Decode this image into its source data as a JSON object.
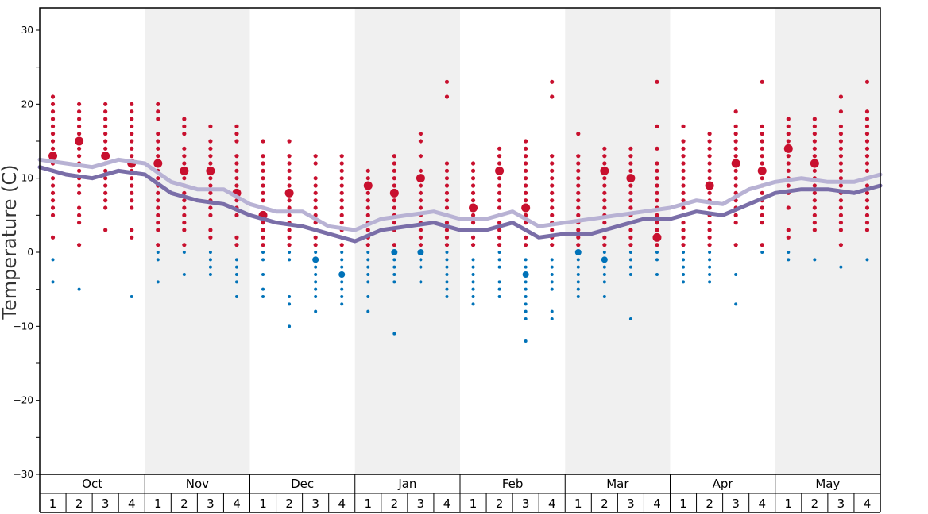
{
  "chart_data": {
    "type": "scatter",
    "ylabel": "Temperature (C)",
    "ylim": [
      -30,
      33
    ],
    "yticks": [
      30,
      20,
      10,
      0,
      -10,
      -20,
      -30
    ],
    "months": [
      "Oct",
      "Nov",
      "Dec",
      "Jan",
      "Feb",
      "Mar",
      "Apr",
      "May"
    ],
    "weeks": [
      "1",
      "2",
      "3",
      "4"
    ],
    "shaded_months": [
      "Nov",
      "Jan",
      "Mar",
      "May"
    ],
    "colors": {
      "warm": "#c8102e",
      "cold": "#0072b8",
      "line_upper": "#b8b2d4",
      "line_lower": "#7a6ea8",
      "band": "#f0f0f0"
    },
    "lines": [
      {
        "style": "upper",
        "values": [
          12.5,
          12.0,
          11.5,
          12.5,
          12.0,
          9.5,
          8.5,
          8.5,
          6.5,
          5.5,
          5.5,
          3.5,
          3.0,
          4.5,
          5.0,
          5.5,
          4.5,
          4.5,
          5.5,
          3.5,
          4.0,
          4.5,
          5.0,
          5.5,
          6.0,
          7.0,
          6.5,
          8.5,
          9.5,
          10.0,
          9.5,
          9.5,
          10.5
        ]
      },
      {
        "style": "lower",
        "values": [
          11.5,
          10.5,
          10.0,
          11.0,
          10.5,
          8.0,
          7.0,
          6.5,
          5.0,
          4.0,
          3.5,
          2.5,
          1.5,
          3.0,
          3.5,
          4.0,
          3.0,
          3.0,
          4.0,
          2.0,
          2.5,
          2.5,
          3.5,
          4.5,
          4.5,
          5.5,
          5.0,
          6.5,
          8.0,
          8.5,
          8.5,
          8.0,
          9.0
        ]
      }
    ],
    "week_points": [
      {
        "month": "Oct",
        "week": 1,
        "warm": [
          2,
          5,
          6,
          7,
          8,
          9,
          10,
          11,
          12,
          13,
          14,
          15,
          16,
          17,
          18,
          19,
          20,
          21
        ],
        "big_warm": [
          13
        ],
        "cold": [
          -1,
          -4
        ],
        "big_cold": []
      },
      {
        "month": "Oct",
        "week": 2,
        "warm": [
          1,
          4,
          5,
          6,
          8,
          9,
          10,
          11,
          12,
          13,
          14,
          15,
          16,
          17,
          18,
          19,
          20
        ],
        "big_warm": [
          15
        ],
        "cold": [
          -5
        ],
        "big_cold": []
      },
      {
        "month": "Oct",
        "week": 3,
        "warm": [
          3,
          6,
          7,
          8,
          9,
          10,
          11,
          12,
          13,
          14,
          15,
          16,
          17,
          18,
          19,
          20
        ],
        "big_warm": [
          13
        ],
        "cold": [],
        "big_cold": []
      },
      {
        "month": "Oct",
        "week": 4,
        "warm": [
          2,
          3,
          6,
          7,
          8,
          9,
          10,
          11,
          12,
          13,
          14,
          15,
          16,
          17,
          18,
          19,
          20
        ],
        "big_warm": [
          12
        ],
        "cold": [
          -6
        ],
        "big_cold": []
      },
      {
        "month": "Nov",
        "week": 1,
        "warm": [
          1,
          3,
          4,
          5,
          6,
          7,
          8,
          9,
          10,
          11,
          12,
          13,
          14,
          15,
          16,
          18,
          19,
          20
        ],
        "big_warm": [
          12
        ],
        "cold": [
          -1,
          -4,
          0
        ],
        "big_cold": []
      },
      {
        "month": "Nov",
        "week": 2,
        "warm": [
          1,
          3,
          4,
          5,
          6,
          7,
          8,
          9,
          10,
          11,
          12,
          13,
          14,
          16,
          17,
          18
        ],
        "big_warm": [
          11
        ],
        "cold": [
          0,
          -3
        ],
        "big_cold": []
      },
      {
        "month": "Nov",
        "week": 3,
        "warm": [
          2,
          3,
          5,
          6,
          7,
          8,
          9,
          10,
          11,
          12,
          13,
          14,
          15,
          17
        ],
        "big_warm": [
          11
        ],
        "cold": [
          0,
          -1,
          -2,
          -3
        ],
        "big_cold": []
      },
      {
        "month": "Nov",
        "week": 4,
        "warm": [
          1,
          2,
          5,
          6,
          7,
          8,
          9,
          10,
          11,
          12,
          13,
          15,
          16,
          17
        ],
        "big_warm": [
          8
        ],
        "cold": [
          -1,
          -2,
          -3,
          -4,
          -6
        ],
        "big_cold": []
      },
      {
        "month": "Dec",
        "week": 1,
        "warm": [
          1,
          2,
          3,
          4,
          5,
          6,
          7,
          8,
          9,
          10,
          11,
          12,
          13,
          15
        ],
        "big_warm": [
          5
        ],
        "cold": [
          0,
          -1,
          -3,
          -5,
          -6
        ],
        "big_cold": []
      },
      {
        "month": "Dec",
        "week": 2,
        "warm": [
          1,
          2,
          3,
          4,
          5,
          6,
          7,
          9,
          10,
          11,
          12,
          13,
          15
        ],
        "big_warm": [
          8
        ],
        "cold": [
          0,
          -1,
          -6,
          -7,
          -10
        ],
        "big_cold": []
      },
      {
        "month": "Dec",
        "week": 3,
        "warm": [
          1,
          2,
          3,
          4,
          5,
          6,
          7,
          8,
          9,
          10,
          12,
          13
        ],
        "big_warm": [],
        "cold": [
          0,
          -2,
          -3,
          -4,
          -5,
          -6,
          -8
        ],
        "big_cold": [
          -1
        ]
      },
      {
        "month": "Dec",
        "week": 4,
        "warm": [
          1,
          2,
          3,
          4,
          5,
          6,
          7,
          8,
          9,
          10,
          11,
          12,
          13
        ],
        "big_warm": [],
        "cold": [
          0,
          -1,
          -2,
          -4,
          -5,
          -6,
          -7
        ],
        "big_cold": [
          -3
        ]
      },
      {
        "month": "Jan",
        "week": 1,
        "warm": [
          1,
          2,
          3,
          4,
          5,
          6,
          7,
          8,
          10,
          11
        ],
        "big_warm": [
          9
        ],
        "cold": [
          0,
          -1,
          -2,
          -3,
          -4,
          -6,
          -8
        ],
        "big_cold": []
      },
      {
        "month": "Jan",
        "week": 2,
        "warm": [
          1,
          3,
          4,
          5,
          6,
          7,
          9,
          10,
          11,
          12,
          13
        ],
        "big_warm": [
          8
        ],
        "cold": [
          -1,
          -2,
          -3,
          -4,
          -11
        ],
        "big_cold": [
          0
        ]
      },
      {
        "month": "Jan",
        "week": 3,
        "warm": [
          1,
          2,
          3,
          4,
          5,
          6,
          7,
          8,
          9,
          11,
          13,
          15,
          16
        ],
        "big_warm": [
          10
        ],
        "cold": [
          -1,
          -2,
          -4
        ],
        "big_cold": [
          0
        ]
      },
      {
        "month": "Jan",
        "week": 4,
        "warm": [
          1,
          2,
          3,
          4,
          5,
          6,
          7,
          8,
          9,
          10,
          11,
          12,
          21,
          23
        ],
        "big_warm": [],
        "cold": [
          0,
          -1,
          -2,
          -3,
          -4,
          -5,
          -6
        ],
        "big_cold": []
      },
      {
        "month": "Feb",
        "week": 1,
        "warm": [
          1,
          2,
          3,
          4,
          5,
          7,
          8,
          9,
          10,
          11,
          12
        ],
        "big_warm": [
          6
        ],
        "cold": [
          -1,
          -2,
          -3,
          -4,
          -5,
          -6,
          -7
        ],
        "big_cold": []
      },
      {
        "month": "Feb",
        "week": 2,
        "warm": [
          1,
          2,
          3,
          4,
          5,
          6,
          7,
          8,
          9,
          10,
          12,
          13,
          14
        ],
        "big_warm": [
          11
        ],
        "cold": [
          0,
          -1,
          -2,
          -4,
          -5,
          -6
        ],
        "big_cold": []
      },
      {
        "month": "Feb",
        "week": 3,
        "warm": [
          1,
          2,
          3,
          4,
          5,
          7,
          8,
          9,
          10,
          11,
          12,
          13,
          14,
          15
        ],
        "big_warm": [
          6
        ],
        "cold": [
          -1,
          -2,
          -4,
          -5,
          -6,
          -7,
          -8,
          -9,
          -12
        ],
        "big_cold": [
          -3
        ]
      },
      {
        "month": "Feb",
        "week": 4,
        "warm": [
          1,
          2,
          3,
          4,
          5,
          6,
          7,
          8,
          9,
          10,
          11,
          12,
          13,
          21,
          23
        ],
        "big_warm": [],
        "cold": [
          -1,
          -2,
          -3,
          -4,
          -5,
          -8,
          -9
        ],
        "big_cold": []
      },
      {
        "month": "Mar",
        "week": 1,
        "warm": [
          1,
          2,
          3,
          4,
          5,
          6,
          7,
          8,
          9,
          10,
          11,
          12,
          13,
          16
        ],
        "big_warm": [],
        "cold": [
          -1,
          -2,
          -3,
          -4,
          -5,
          -6
        ],
        "big_cold": [
          0
        ]
      },
      {
        "month": "Mar",
        "week": 2,
        "warm": [
          1,
          2,
          3,
          4,
          5,
          6,
          7,
          8,
          9,
          10,
          12,
          13,
          14
        ],
        "big_warm": [
          11
        ],
        "cold": [
          0,
          -2,
          -3,
          -4,
          -6
        ],
        "big_cold": [
          -1
        ]
      },
      {
        "month": "Mar",
        "week": 3,
        "warm": [
          1,
          2,
          3,
          4,
          5,
          6,
          7,
          8,
          9,
          11,
          12,
          13,
          14
        ],
        "big_warm": [
          10
        ],
        "cold": [
          0,
          -1,
          -2,
          -3,
          -9
        ],
        "big_cold": []
      },
      {
        "month": "Mar",
        "week": 4,
        "warm": [
          1,
          3,
          4,
          5,
          6,
          7,
          8,
          9,
          10,
          11,
          12,
          14,
          17,
          23
        ],
        "big_warm": [
          2
        ],
        "cold": [
          0,
          -1,
          -3
        ],
        "big_cold": []
      },
      {
        "month": "Apr",
        "week": 1,
        "warm": [
          1,
          2,
          3,
          4,
          5,
          6,
          7,
          8,
          9,
          10,
          11,
          12,
          13,
          14,
          15,
          17
        ],
        "big_warm": [],
        "cold": [
          0,
          -1,
          -2,
          -3,
          -4
        ],
        "big_cold": []
      },
      {
        "month": "Apr",
        "week": 2,
        "warm": [
          1,
          2,
          3,
          4,
          5,
          6,
          7,
          8,
          10,
          11,
          12,
          13,
          14,
          15,
          16
        ],
        "big_warm": [
          9
        ],
        "cold": [
          0,
          -1,
          -2,
          -3,
          -4
        ],
        "big_cold": []
      },
      {
        "month": "Apr",
        "week": 3,
        "warm": [
          1,
          4,
          5,
          6,
          7,
          8,
          9,
          10,
          11,
          13,
          14,
          15,
          16,
          17,
          19
        ],
        "big_warm": [
          12
        ],
        "cold": [
          -3,
          -7
        ],
        "big_cold": []
      },
      {
        "month": "Apr",
        "week": 4,
        "warm": [
          1,
          4,
          5,
          6,
          7,
          8,
          9,
          10,
          12,
          13,
          14,
          15,
          16,
          17,
          23
        ],
        "big_warm": [
          11
        ],
        "cold": [
          0
        ],
        "big_cold": []
      },
      {
        "month": "May",
        "week": 1,
        "warm": [
          2,
          3,
          6,
          8,
          9,
          10,
          11,
          12,
          13,
          15,
          16,
          17,
          18
        ],
        "big_warm": [
          14
        ],
        "cold": [
          0,
          -1
        ],
        "big_cold": []
      },
      {
        "month": "May",
        "week": 2,
        "warm": [
          3,
          4,
          5,
          6,
          7,
          8,
          9,
          10,
          11,
          13,
          14,
          15,
          16,
          17,
          18
        ],
        "big_warm": [
          12
        ],
        "cold": [
          -1
        ],
        "big_cold": []
      },
      {
        "month": "May",
        "week": 3,
        "warm": [
          1,
          3,
          4,
          5,
          6,
          7,
          8,
          9,
          10,
          11,
          12,
          13,
          14,
          15,
          16,
          17,
          19,
          21
        ],
        "big_warm": [],
        "cold": [
          -2
        ],
        "big_cold": []
      },
      {
        "month": "May",
        "week": 4,
        "warm": [
          3,
          4,
          5,
          6,
          7,
          8,
          9,
          10,
          11,
          12,
          13,
          14,
          15,
          16,
          17,
          18,
          19,
          23
        ],
        "big_warm": [],
        "cold": [
          -1
        ],
        "big_cold": []
      }
    ]
  }
}
